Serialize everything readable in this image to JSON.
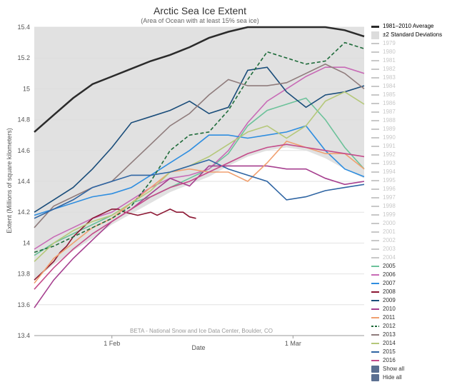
{
  "colors": {
    "avg": "#2b2b2b",
    "band": "#dcdcdc",
    "faded": "#c8c8c8",
    "text": "#555555",
    "title": "#333333"
  },
  "chart_data": {
    "type": "line",
    "title": "Arctic Sea Ice Extent",
    "subtitle": "(Area of Ocean with at least 15% sea ice)",
    "ylabel": "Extent (Millions of square kilometers)",
    "xlabel": "Date",
    "credit": "BETA - National Snow and Ice Data Center, Boulder, CO",
    "ylim": [
      13.4,
      15.4
    ],
    "xlim": [
      20,
      71
    ],
    "x_units": "day of year",
    "x_ticks": [
      {
        "value": 32,
        "label": "1 Feb"
      },
      {
        "value": 60,
        "label": "1 Mar"
      }
    ],
    "y_ticks": [
      13.4,
      13.6,
      13.8,
      14,
      14.2,
      14.4,
      14.6,
      14.8,
      15,
      15.2,
      15.4
    ],
    "y_tick_labels": [
      "13.4",
      "13.6",
      "13.8",
      "14",
      "14.2",
      "14.4",
      "14.6",
      "14.8",
      "15",
      "15.2",
      "15.4"
    ],
    "grid": true,
    "legend_position": "right",
    "average": {
      "name": "1981–2010 Average",
      "x": [
        20,
        23,
        26,
        29,
        32,
        35,
        38,
        41,
        44,
        47,
        50,
        53,
        56,
        59,
        62,
        65,
        68,
        71
      ],
      "y": [
        14.72,
        14.83,
        14.94,
        15.03,
        15.08,
        15.13,
        15.18,
        15.22,
        15.27,
        15.33,
        15.37,
        15.41,
        15.44,
        15.46,
        15.47,
        15.43,
        15.38,
        15.34
      ]
    },
    "band": {
      "name": "±2 Standard Deviations",
      "x": [
        20,
        23,
        26,
        29,
        32,
        35,
        38,
        41,
        44,
        47,
        50,
        53,
        56,
        59,
        62,
        65,
        68,
        71
      ],
      "upper": [
        15.4,
        15.4,
        15.4,
        15.4,
        15.4,
        15.4,
        15.4,
        15.4,
        15.4,
        15.4,
        15.4,
        15.4,
        15.4,
        15.4,
        15.4,
        15.4,
        15.4,
        15.4
      ],
      "lower": [
        13.76,
        13.86,
        13.95,
        14.03,
        14.12,
        14.19,
        14.26,
        14.33,
        14.38,
        14.43,
        14.5,
        14.56,
        14.6,
        14.62,
        14.6,
        14.55,
        14.48,
        14.42
      ]
    },
    "faded_years": [
      "1979",
      "1980",
      "1981",
      "1982",
      "1983",
      "1984",
      "1985",
      "1986",
      "1987",
      "1988",
      "1989",
      "1990",
      "1991",
      "1992",
      "1993",
      "1994",
      "1995",
      "1996",
      "1997",
      "1998",
      "1999",
      "2000",
      "2001",
      "2002",
      "2003",
      "2004"
    ],
    "series": [
      {
        "name": "2005",
        "color": "#6cc29a",
        "dash": false,
        "x": [
          20,
          23,
          26,
          29,
          32,
          35,
          38,
          41,
          44,
          47,
          50,
          53,
          56,
          59,
          62,
          65,
          68,
          71
        ],
        "y": [
          13.92,
          14.0,
          14.06,
          14.12,
          14.18,
          14.26,
          14.3,
          14.36,
          14.42,
          14.48,
          14.58,
          14.76,
          14.86,
          14.9,
          14.94,
          14.8,
          14.62,
          14.48
        ]
      },
      {
        "name": "2006",
        "color": "#c86bb6",
        "dash": false,
        "x": [
          20,
          23,
          26,
          29,
          32,
          35,
          38,
          41,
          44,
          47,
          50,
          53,
          56,
          59,
          62,
          65,
          68,
          71
        ],
        "y": [
          13.96,
          14.04,
          14.1,
          14.16,
          14.2,
          14.28,
          14.36,
          14.42,
          14.44,
          14.48,
          14.6,
          14.78,
          14.92,
          15.0,
          15.08,
          15.14,
          15.14,
          15.1
        ]
      },
      {
        "name": "2007",
        "color": "#2f8ee0",
        "dash": false,
        "x": [
          20,
          23,
          26,
          29,
          32,
          35,
          38,
          41,
          44,
          47,
          50,
          53,
          56,
          59,
          62,
          65,
          68,
          71
        ],
        "y": [
          14.18,
          14.22,
          14.26,
          14.3,
          14.32,
          14.36,
          14.44,
          14.52,
          14.6,
          14.7,
          14.7,
          14.68,
          14.7,
          14.72,
          14.76,
          14.6,
          14.48,
          14.43
        ]
      },
      {
        "name": "2008",
        "color": "#8c1733",
        "dash": false,
        "x": [
          20,
          21,
          22,
          23,
          24,
          25,
          26,
          27,
          28,
          29,
          30,
          31,
          32,
          33,
          34,
          35,
          36,
          37,
          38,
          39,
          40,
          41,
          42,
          43,
          44,
          45
        ],
        "y": [
          13.76,
          13.8,
          13.84,
          13.88,
          13.94,
          13.98,
          14.04,
          14.08,
          14.12,
          14.16,
          14.18,
          14.2,
          14.22,
          14.22,
          14.2,
          14.19,
          14.18,
          14.19,
          14.2,
          14.18,
          14.2,
          14.22,
          14.2,
          14.2,
          14.17,
          14.16
        ]
      },
      {
        "name": "2009",
        "color": "#1a4d7a",
        "dash": false,
        "x": [
          20,
          23,
          26,
          29,
          32,
          35,
          38,
          41,
          44,
          47,
          50,
          53,
          56,
          59,
          62,
          65,
          68,
          71
        ],
        "y": [
          14.2,
          14.28,
          14.36,
          14.48,
          14.62,
          14.78,
          14.82,
          14.86,
          14.92,
          14.84,
          14.88,
          15.12,
          15.14,
          14.98,
          14.88,
          14.96,
          14.98,
          15.02
        ]
      },
      {
        "name": "2010",
        "color": "#a63f8f",
        "dash": false,
        "x": [
          20,
          23,
          26,
          29,
          32,
          35,
          38,
          41,
          44,
          47,
          50,
          53,
          56,
          59,
          62,
          65,
          68,
          71
        ],
        "y": [
          13.58,
          13.76,
          13.9,
          14.02,
          14.14,
          14.22,
          14.32,
          14.42,
          14.37,
          14.5,
          14.5,
          14.5,
          14.5,
          14.48,
          14.48,
          14.42,
          14.38,
          14.4
        ]
      },
      {
        "name": "2011",
        "color": "#f0a070",
        "dash": false,
        "x": [
          20,
          23,
          26,
          29,
          32,
          35,
          38,
          41,
          44,
          47,
          50,
          53,
          56,
          59,
          62,
          65,
          68,
          71
        ],
        "y": [
          13.74,
          13.9,
          14.0,
          14.1,
          14.16,
          14.26,
          14.36,
          14.46,
          14.48,
          14.46,
          14.46,
          14.4,
          14.52,
          14.66,
          14.62,
          14.58,
          14.58,
          14.48
        ]
      },
      {
        "name": "2012",
        "color": "#1e6b3a",
        "dash": true,
        "x": [
          20,
          23,
          26,
          29,
          32,
          35,
          38,
          41,
          44,
          47,
          50,
          53,
          56,
          59,
          62,
          65,
          68,
          71
        ],
        "y": [
          13.94,
          13.98,
          14.04,
          14.1,
          14.16,
          14.24,
          14.4,
          14.6,
          14.7,
          14.72,
          14.86,
          15.06,
          15.24,
          15.2,
          15.16,
          15.18,
          15.3,
          15.26
        ]
      },
      {
        "name": "2013",
        "color": "#8f7c7c",
        "dash": false,
        "x": [
          20,
          23,
          26,
          29,
          32,
          35,
          38,
          41,
          44,
          47,
          50,
          53,
          56,
          59,
          62,
          65,
          68,
          71
        ],
        "y": [
          14.1,
          14.24,
          14.3,
          14.36,
          14.4,
          14.52,
          14.64,
          14.76,
          14.84,
          14.96,
          15.06,
          15.02,
          15.02,
          15.04,
          15.1,
          15.16,
          15.1,
          15.0
        ]
      },
      {
        "name": "2014",
        "color": "#b5c87a",
        "dash": false,
        "x": [
          20,
          23,
          26,
          29,
          32,
          35,
          38,
          41,
          44,
          47,
          50,
          53,
          56,
          59,
          62,
          65,
          68,
          71
        ],
        "y": [
          13.88,
          14.0,
          14.08,
          14.14,
          14.18,
          14.26,
          14.34,
          14.46,
          14.5,
          14.56,
          14.64,
          14.72,
          14.76,
          14.68,
          14.76,
          14.92,
          14.98,
          14.9
        ]
      },
      {
        "name": "2015",
        "color": "#2f65a3",
        "dash": false,
        "x": [
          20,
          23,
          26,
          29,
          32,
          35,
          38,
          41,
          44,
          47,
          50,
          53,
          56,
          59,
          62,
          65,
          68,
          71
        ],
        "y": [
          14.16,
          14.22,
          14.28,
          14.36,
          14.4,
          14.44,
          14.44,
          14.46,
          14.5,
          14.54,
          14.48,
          14.44,
          14.4,
          14.28,
          14.3,
          14.34,
          14.36,
          14.38
        ]
      },
      {
        "name": "2016",
        "color": "#c44b8a",
        "dash": false,
        "x": [
          20,
          23,
          26,
          29,
          32,
          35,
          38,
          41,
          44,
          47,
          50,
          53,
          56,
          59,
          62,
          65,
          68,
          71
        ],
        "y": [
          13.7,
          13.84,
          13.96,
          14.06,
          14.14,
          14.22,
          14.3,
          14.36,
          14.4,
          14.46,
          14.52,
          14.58,
          14.62,
          14.64,
          14.62,
          14.6,
          14.58,
          14.56
        ]
      }
    ]
  },
  "legend": {
    "average_label": "1981–2010 Average",
    "band_label": "±2 Standard Deviations",
    "show_all": "Show all",
    "hide_all": "Hide all"
  }
}
